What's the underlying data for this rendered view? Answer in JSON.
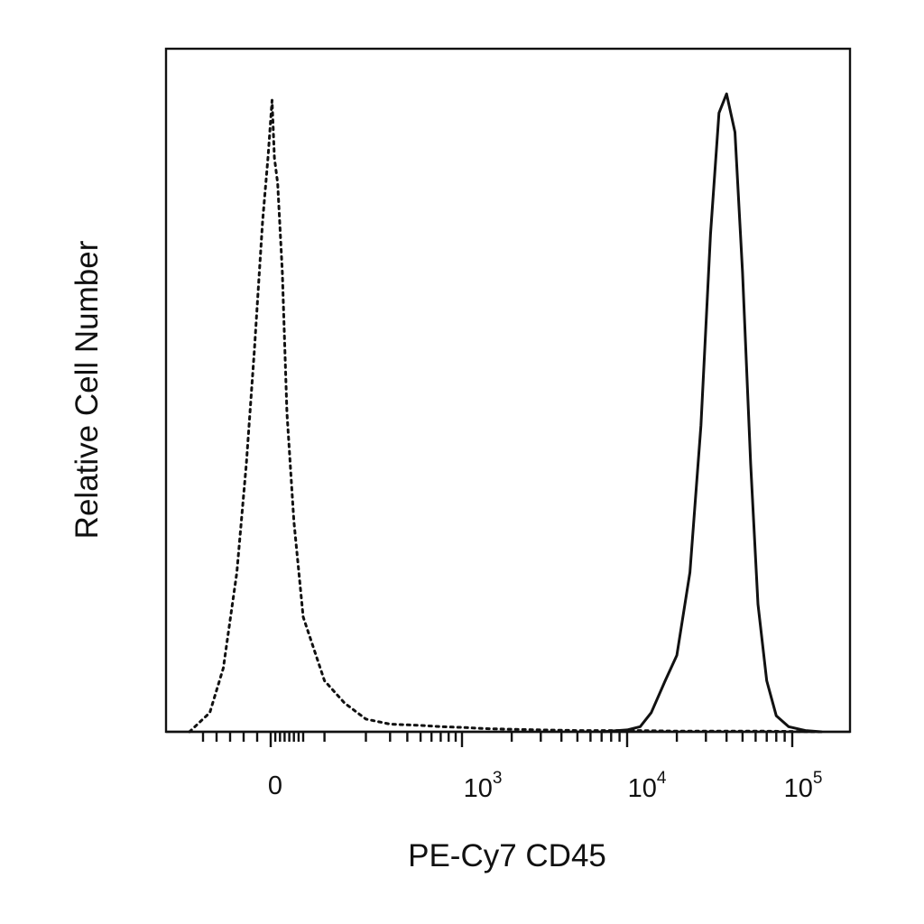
{
  "chart_data": {
    "type": "line",
    "xlabel": "PE-Cy7 CD45",
    "ylabel": "Relative Cell Number",
    "x_scale": "biexponential (logicle)",
    "x_tick_labels": [
      {
        "base": "0",
        "exp": ""
      },
      {
        "base": "10",
        "exp": "3"
      },
      {
        "base": "10",
        "exp": "4"
      },
      {
        "base": "10",
        "exp": "5"
      }
    ],
    "y_tick_labels": [],
    "grid": false,
    "legend": "none",
    "series": [
      {
        "style": "dotted",
        "color": "#111111",
        "x": [
          -60,
          -45,
          -35,
          -25,
          -18,
          -12,
          -6,
          -2,
          3,
          8,
          15,
          25,
          35,
          50,
          70,
          100,
          140,
          200,
          300,
          500,
          700,
          1000,
          1400,
          2000,
          3000,
          5000,
          8000,
          12000,
          20000,
          40000,
          70000,
          150000
        ],
        "y": [
          0.0,
          0.03,
          0.1,
          0.25,
          0.42,
          0.6,
          0.8,
          0.9,
          0.99,
          0.9,
          0.86,
          0.72,
          0.5,
          0.33,
          0.18,
          0.08,
          0.045,
          0.02,
          0.012,
          0.01,
          0.008,
          0.007,
          0.005,
          0.004,
          0.003,
          0.002,
          0.002,
          0.002,
          0.001,
          0.001,
          0.001,
          0.0
        ]
      },
      {
        "style": "solid",
        "color": "#111111",
        "x": [
          7000,
          10000,
          12000,
          14000,
          17000,
          20000,
          24000,
          28000,
          32000,
          36000,
          40000,
          45000,
          50000,
          56000,
          62000,
          70000,
          80000,
          95000,
          120000,
          150000
        ],
        "y": [
          0.0,
          0.003,
          0.008,
          0.03,
          0.08,
          0.12,
          0.25,
          0.48,
          0.78,
          0.97,
          1.0,
          0.94,
          0.72,
          0.42,
          0.2,
          0.08,
          0.025,
          0.008,
          0.002,
          0.0
        ]
      }
    ]
  }
}
